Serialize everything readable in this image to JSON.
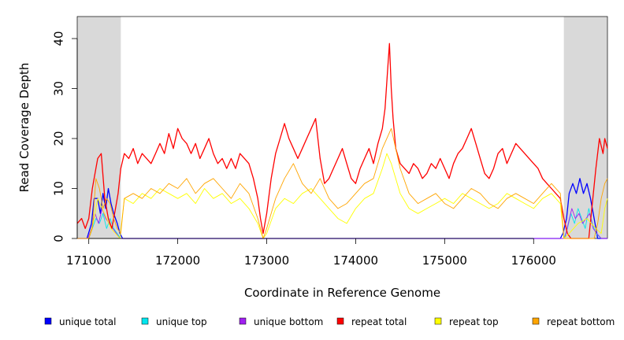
{
  "chart_data": {
    "type": "line",
    "title": "",
    "xlabel": "Coordinate in Reference Genome",
    "ylabel": "Read Coverage Depth",
    "xlim": [
      170870,
      176830
    ],
    "ylim": [
      0,
      44
    ],
    "x_ticks": [
      171000,
      172000,
      173000,
      174000,
      175000,
      176000
    ],
    "x_tick_labels": [
      "171000",
      "172000",
      "173000",
      "174000",
      "175000",
      "176000"
    ],
    "y_ticks": [
      0,
      10,
      20,
      30,
      40
    ],
    "y_tick_labels": [
      "0",
      "10",
      "20",
      "30",
      "40"
    ],
    "shaded_regions": [
      {
        "from": 170870,
        "to": 171360
      },
      {
        "from": 176340,
        "to": 176830
      }
    ],
    "grid": false,
    "legend_position": "bottom",
    "series": [
      {
        "name": "unique total",
        "color": "#0000ff",
        "x": [
          170870,
          170980,
          171030,
          171060,
          171100,
          171130,
          171160,
          171190,
          171220,
          171250,
          171280,
          171320,
          171350,
          171380,
          172000,
          173000,
          174000,
          175000,
          176000,
          176300,
          176330,
          176370,
          176400,
          176440,
          176480,
          176520,
          176560,
          176600,
          176640,
          176680,
          176720,
          176760,
          176830
        ],
        "values": [
          0,
          0,
          3,
          8,
          8,
          5,
          9,
          6,
          10,
          7,
          5,
          3,
          1,
          0,
          0,
          0,
          0,
          0,
          0,
          0,
          1,
          4,
          9,
          11,
          9,
          12,
          9,
          11,
          8,
          4,
          0,
          0,
          0
        ]
      },
      {
        "name": "unique top",
        "color": "#00e5ee",
        "x": [
          170870,
          171000,
          171040,
          171080,
          171120,
          171160,
          171200,
          171240,
          171280,
          171320,
          171360,
          171400,
          172000,
          173000,
          174000,
          175000,
          176000,
          176340,
          176380,
          176420,
          176460,
          176500,
          176540,
          176580,
          176620,
          176660,
          176700,
          176760,
          176830
        ],
        "values": [
          0,
          0,
          2,
          4,
          3,
          5,
          2,
          4,
          2,
          1,
          0,
          0,
          0,
          0,
          0,
          0,
          0,
          0,
          2,
          5,
          3,
          6,
          4,
          2,
          6,
          3,
          1,
          0,
          0
        ]
      },
      {
        "name": "unique bottom",
        "color": "#a020f0",
        "x": [
          170870,
          170990,
          171030,
          171070,
          171110,
          171150,
          171190,
          171230,
          171270,
          171310,
          171350,
          171400,
          172000,
          173000,
          174000,
          175000,
          176000,
          176350,
          176390,
          176430,
          176470,
          176510,
          176550,
          176590,
          176630,
          176670,
          176710,
          176760,
          176830
        ],
        "values": [
          0,
          0,
          2,
          5,
          3,
          6,
          4,
          3,
          2,
          1,
          0,
          0,
          0,
          0,
          0,
          0,
          0,
          0,
          3,
          6,
          4,
          5,
          3,
          4,
          5,
          2,
          1,
          0,
          0
        ]
      },
      {
        "name": "repeat total",
        "color": "#ff0000",
        "x": [
          170870,
          170920,
          170960,
          171000,
          171040,
          171080,
          171100,
          171140,
          171180,
          171220,
          171260,
          171300,
          171330,
          171360,
          171400,
          171450,
          171500,
          171550,
          171600,
          171650,
          171700,
          171750,
          171800,
          171850,
          171900,
          171950,
          172000,
          172050,
          172100,
          172150,
          172200,
          172250,
          172300,
          172350,
          172400,
          172450,
          172500,
          172550,
          172600,
          172650,
          172700,
          172750,
          172800,
          172850,
          172900,
          172930,
          172960,
          173000,
          173050,
          173100,
          173150,
          173200,
          173250,
          173300,
          173350,
          173400,
          173450,
          173500,
          173550,
          173600,
          173650,
          173700,
          173750,
          173800,
          173850,
          173900,
          173950,
          174000,
          174050,
          174100,
          174150,
          174200,
          174250,
          174300,
          174330,
          174360,
          174380,
          174400,
          174420,
          174450,
          174500,
          174550,
          174600,
          174650,
          174700,
          174750,
          174800,
          174850,
          174900,
          174950,
          175000,
          175050,
          175100,
          175150,
          175200,
          175250,
          175300,
          175350,
          175400,
          175450,
          175500,
          175550,
          175600,
          175650,
          175700,
          175750,
          175800,
          175850,
          175900,
          175950,
          176000,
          176050,
          176100,
          176150,
          176200,
          176250,
          176300,
          176340,
          176380,
          176420,
          176460,
          176500,
          176540,
          176580,
          176620,
          176660,
          176700,
          176740,
          176780,
          176800,
          176830
        ],
        "values": [
          3,
          4,
          2,
          4,
          10,
          14,
          16,
          17,
          8,
          4,
          2,
          6,
          9,
          14,
          17,
          16,
          18,
          15,
          17,
          16,
          15,
          17,
          19,
          17,
          21,
          18,
          22,
          20,
          19,
          17,
          19,
          16,
          18,
          20,
          17,
          15,
          16,
          14,
          16,
          14,
          17,
          16,
          15,
          12,
          8,
          4,
          1,
          5,
          12,
          17,
          20,
          23,
          20,
          18,
          16,
          18,
          20,
          22,
          24,
          16,
          11,
          12,
          14,
          16,
          18,
          15,
          12,
          11,
          14,
          16,
          18,
          15,
          19,
          22,
          26,
          34,
          39,
          30,
          24,
          18,
          15,
          14,
          13,
          15,
          14,
          12,
          13,
          15,
          14,
          16,
          14,
          12,
          15,
          17,
          18,
          20,
          22,
          19,
          16,
          13,
          12,
          14,
          17,
          18,
          15,
          17,
          19,
          18,
          17,
          16,
          15,
          14,
          12,
          11,
          10,
          9,
          8,
          4,
          1,
          0,
          0,
          0,
          0,
          0,
          0,
          7,
          14,
          20,
          17,
          20,
          18
        ]
      },
      {
        "name": "repeat top",
        "color": "#ffff00",
        "x": [
          170870,
          171000,
          171050,
          171100,
          171150,
          171200,
          171250,
          171300,
          171350,
          171400,
          171500,
          171600,
          171700,
          171800,
          171900,
          172000,
          172100,
          172200,
          172300,
          172400,
          172500,
          172600,
          172700,
          172800,
          172900,
          172960,
          173000,
          173100,
          173200,
          173300,
          173400,
          173500,
          173600,
          173700,
          173800,
          173900,
          174000,
          174100,
          174200,
          174300,
          174350,
          174400,
          174500,
          174600,
          174700,
          174800,
          174900,
          175000,
          175100,
          175200,
          175300,
          175400,
          175500,
          175600,
          175700,
          175800,
          175900,
          176000,
          176100,
          176200,
          176300,
          176340,
          176400,
          176500,
          176600,
          176700,
          176760,
          176800,
          176830
        ],
        "values": [
          0,
          0,
          3,
          8,
          6,
          4,
          2,
          1,
          0,
          8,
          7,
          9,
          8,
          10,
          9,
          8,
          9,
          7,
          10,
          8,
          9,
          7,
          8,
          6,
          3,
          0,
          1,
          6,
          8,
          7,
          9,
          10,
          8,
          6,
          4,
          3,
          6,
          8,
          9,
          14,
          17,
          15,
          9,
          6,
          5,
          6,
          7,
          8,
          7,
          9,
          8,
          7,
          6,
          7,
          9,
          8,
          7,
          6,
          8,
          9,
          7,
          0,
          1,
          3,
          4,
          2,
          1,
          6,
          8
        ]
      },
      {
        "name": "repeat bottom",
        "color": "#ffa500",
        "x": [
          170870,
          171000,
          171040,
          171080,
          171120,
          171160,
          171200,
          171240,
          171280,
          171320,
          171360,
          171400,
          171500,
          171600,
          171700,
          171800,
          171900,
          172000,
          172100,
          172200,
          172300,
          172400,
          172500,
          172600,
          172700,
          172800,
          172900,
          172960,
          173000,
          173100,
          173200,
          173300,
          173400,
          173500,
          173600,
          173700,
          173800,
          173900,
          174000,
          174100,
          174200,
          174300,
          174400,
          174500,
          174600,
          174700,
          174800,
          174900,
          175000,
          175100,
          175200,
          175300,
          175400,
          175500,
          175600,
          175700,
          175800,
          175900,
          176000,
          176100,
          176200,
          176300,
          176340,
          176400,
          176500,
          176600,
          176680,
          176720,
          176760,
          176800,
          176830
        ],
        "values": [
          0,
          0,
          2,
          12,
          10,
          6,
          8,
          7,
          4,
          2,
          1,
          8,
          9,
          8,
          10,
          9,
          11,
          10,
          12,
          9,
          11,
          12,
          10,
          8,
          11,
          9,
          4,
          0,
          2,
          8,
          12,
          15,
          11,
          9,
          12,
          8,
          6,
          7,
          9,
          11,
          12,
          18,
          22,
          14,
          9,
          7,
          8,
          9,
          7,
          6,
          8,
          10,
          9,
          7,
          6,
          8,
          9,
          8,
          7,
          9,
          11,
          9,
          0,
          0,
          0,
          0,
          0,
          3,
          8,
          11,
          12
        ]
      }
    ]
  }
}
